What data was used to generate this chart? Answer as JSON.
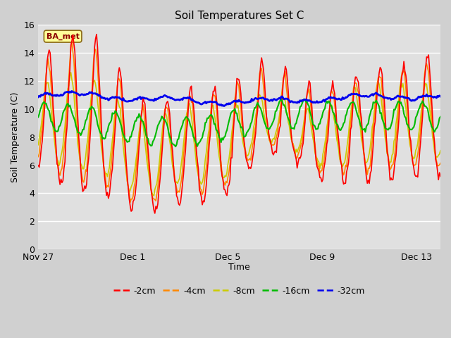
{
  "title": "Soil Temperatures Set C",
  "xlabel": "Time",
  "ylabel": "Soil Temperature (C)",
  "ylim": [
    0,
    16
  ],
  "yticks": [
    0,
    2,
    4,
    6,
    8,
    10,
    12,
    14,
    16
  ],
  "xtick_labels": [
    "Nov 27",
    "Dec 1",
    "Dec 5",
    "Dec 9",
    "Dec 13"
  ],
  "xtick_positions": [
    0,
    4,
    8,
    12,
    16
  ],
  "xlim": [
    0,
    17
  ],
  "fig_bg_color": "#d0d0d0",
  "plot_bg_color": "#e0e0e0",
  "annotation_text": "BA_met",
  "annotation_color": "#8b0000",
  "annotation_bg": "#ffff99",
  "annotation_edge_color": "#8b6914",
  "legend_entries": [
    "-2cm",
    "-4cm",
    "-8cm",
    "-16cm",
    "-32cm"
  ],
  "line_colors": [
    "#ff0000",
    "#ff8800",
    "#cccc00",
    "#00bb00",
    "#0000ee"
  ],
  "line_widths": [
    1.2,
    1.2,
    1.2,
    1.5,
    2.0
  ]
}
